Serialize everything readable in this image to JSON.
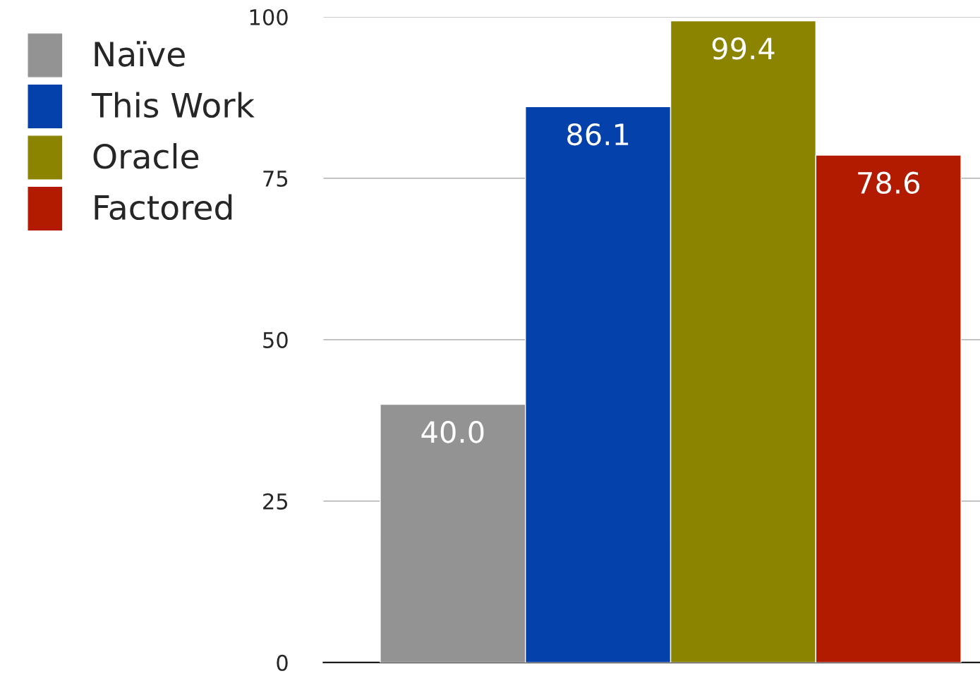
{
  "chart_data": {
    "type": "bar",
    "categories": [
      null
    ],
    "series": [
      {
        "name": "Naïve",
        "color": "#939393",
        "values": [
          40.0
        ],
        "value_labels": [
          "40.0"
        ]
      },
      {
        "name": "This Work",
        "color": "#0441aa",
        "values": [
          86.1
        ],
        "value_labels": [
          "86.1"
        ]
      },
      {
        "name": "Oracle",
        "color": "#8b8400",
        "values": [
          99.4
        ],
        "value_labels": [
          "99.4"
        ]
      },
      {
        "name": "Factored",
        "color": "#b31b00",
        "values": [
          78.6
        ],
        "value_labels": [
          "78.6"
        ]
      }
    ],
    "ylim": [
      0,
      100
    ],
    "yticks": [
      0,
      25,
      50,
      75,
      100
    ],
    "grid": "y",
    "legend": "top left",
    "tick_labels": "y"
  }
}
